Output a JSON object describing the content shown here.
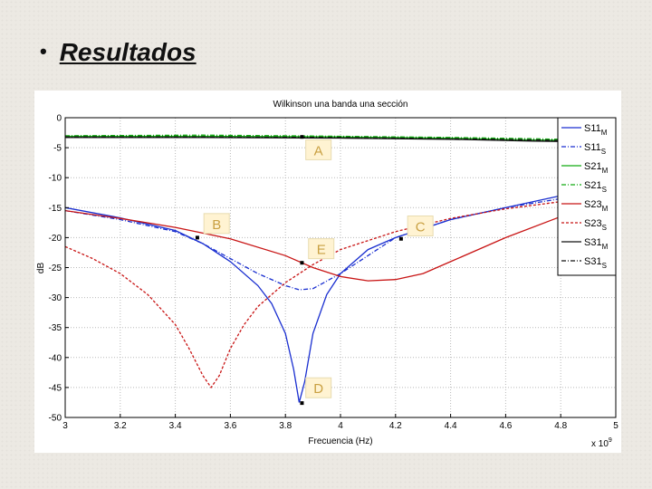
{
  "slide": {
    "bullet": "•",
    "title": "Resultados"
  },
  "chart_data": {
    "type": "line",
    "title": "Wilkinson una banda una sección",
    "xlabel": "Frecuencia (Hz)",
    "ylabel": "dB",
    "x_multiplier": "x 10",
    "x_multiplier_exp": "9",
    "xlim": [
      3,
      5
    ],
    "ylim": [
      -50,
      0
    ],
    "x_ticks": [
      "3",
      "3.2",
      "3.4",
      "3.6",
      "3.8",
      "4",
      "4.2",
      "4.4",
      "4.6",
      "4.8",
      "5"
    ],
    "y_ticks": [
      "0",
      "-5",
      "-10",
      "-15",
      "-20",
      "-25",
      "-30",
      "-35",
      "-40",
      "-45",
      "-50"
    ],
    "grid": true,
    "legend_position": "top-right",
    "series": [
      {
        "name": "S11",
        "sub": "M",
        "color": "#1a2fd0",
        "dash": "",
        "x": [
          3.0,
          3.2,
          3.4,
          3.5,
          3.6,
          3.7,
          3.75,
          3.8,
          3.83,
          3.85,
          3.87,
          3.9,
          3.95,
          4.0,
          4.1,
          4.2,
          4.4,
          4.6,
          4.8,
          5.0
        ],
        "y": [
          -15,
          -16.7,
          -18.8,
          -21,
          -24,
          -28,
          -31,
          -36,
          -42,
          -47.5,
          -44,
          -36,
          -29.5,
          -26,
          -22,
          -20,
          -17,
          -15,
          -13,
          -12.5
        ]
      },
      {
        "name": "S11",
        "sub": "S",
        "color": "#1a2fd0",
        "dash": "5,2,1,2",
        "x": [
          3.0,
          3.2,
          3.4,
          3.5,
          3.6,
          3.7,
          3.8,
          3.85,
          3.9,
          4.0,
          4.2,
          4.4,
          4.6,
          4.8,
          5.0
        ],
        "y": [
          -15.5,
          -17,
          -19,
          -21,
          -23.5,
          -26,
          -28,
          -28.7,
          -28.5,
          -26,
          -20,
          -17,
          -15,
          -13.5,
          -12.5
        ]
      },
      {
        "name": "S21",
        "sub": "M",
        "color": "#11aa11",
        "dash": "",
        "x": [
          3.0,
          3.5,
          4.0,
          4.4,
          4.7,
          5.0
        ],
        "y": [
          -3.1,
          -3.1,
          -3.2,
          -3.4,
          -3.7,
          -3.9
        ]
      },
      {
        "name": "S21",
        "sub": "S",
        "color": "#11aa11",
        "dash": "5,2,1,2",
        "x": [
          3.0,
          3.5,
          4.0,
          4.4,
          4.7,
          5.0
        ],
        "y": [
          -3.0,
          -2.9,
          -3.1,
          -3.3,
          -3.5,
          -3.8
        ]
      },
      {
        "name": "S23",
        "sub": "M",
        "color": "#c81414",
        "dash": "",
        "x": [
          3.0,
          3.2,
          3.4,
          3.6,
          3.8,
          3.9,
          4.0,
          4.1,
          4.2,
          4.3,
          4.4,
          4.6,
          4.8,
          5.0
        ],
        "y": [
          -15.5,
          -16.8,
          -18.3,
          -20.2,
          -23,
          -25,
          -26.5,
          -27.2,
          -27,
          -26,
          -24,
          -20,
          -16.5,
          -14
        ]
      },
      {
        "name": "S23",
        "sub": "S",
        "color": "#c81414",
        "dash": "3,2",
        "x": [
          3.0,
          3.1,
          3.2,
          3.3,
          3.4,
          3.45,
          3.5,
          3.53,
          3.56,
          3.6,
          3.65,
          3.7,
          3.8,
          3.9,
          4.0,
          4.2,
          4.4,
          4.6,
          4.8,
          5.0
        ],
        "y": [
          -21.5,
          -23.5,
          -26,
          -29.5,
          -34.5,
          -38.5,
          -43,
          -45,
          -43,
          -38.5,
          -34.5,
          -31.5,
          -27.5,
          -24.5,
          -22,
          -19,
          -16.8,
          -15.2,
          -14,
          -13
        ]
      },
      {
        "name": "S31",
        "sub": "M",
        "color": "#111111",
        "dash": "",
        "x": [
          3.0,
          3.5,
          4.0,
          4.4,
          4.7,
          5.0
        ],
        "y": [
          -3.3,
          -3.3,
          -3.4,
          -3.6,
          -3.9,
          -4.1
        ]
      },
      {
        "name": "S31",
        "sub": "S",
        "color": "#111111",
        "dash": "5,2,1,2",
        "x": [
          3.0,
          3.5,
          4.0,
          4.4,
          4.7,
          5.0
        ],
        "y": [
          -3.2,
          -3.2,
          -3.3,
          -3.5,
          -3.7,
          -4.0
        ]
      }
    ],
    "markers": [
      {
        "label": "A",
        "x": 3.86,
        "y": -3.2,
        "label_x": 3.92,
        "label_y": -5.5
      },
      {
        "label": "B",
        "x": 3.48,
        "y": -20.0,
        "label_x": 3.55,
        "label_y": -17.8
      },
      {
        "label": "C",
        "x": 4.22,
        "y": -20.2,
        "label_x": 4.29,
        "label_y": -18.2
      },
      {
        "label": "E",
        "x": 3.86,
        "y": -24.2,
        "label_x": 3.93,
        "label_y": -22.0
      },
      {
        "label": "D",
        "x": 3.86,
        "y": -47.6,
        "label_x": 3.92,
        "label_y": -45.2
      }
    ]
  }
}
